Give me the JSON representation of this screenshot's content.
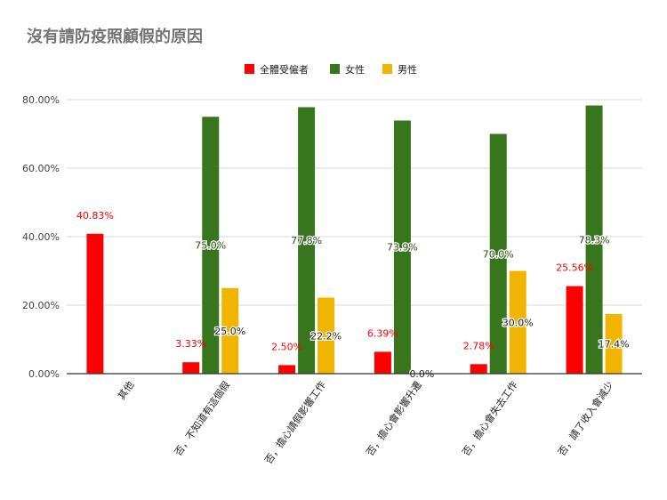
{
  "chart_data": {
    "type": "bar",
    "title": "沒有請防疫照顧假的原因",
    "categories": [
      "其他",
      "否，不知道有這個假",
      "否，擔心請假影響工作",
      "否，擔心會影響升遷",
      "否，擔心會失去工作",
      "否，請了收入會減少"
    ],
    "series": [
      {
        "name": "全體受僱者",
        "color": "#ff0000",
        "values": [
          40.83,
          3.33,
          2.5,
          6.39,
          2.78,
          25.56
        ],
        "labels": [
          "40.83%",
          "3.33%",
          "2.50%",
          "6.39%",
          "2.78%",
          "25.56%"
        ]
      },
      {
        "name": "女性",
        "color": "#38761d",
        "values": [
          null,
          75.0,
          77.8,
          73.9,
          70.0,
          78.3
        ],
        "labels": [
          "",
          "75.0%",
          "77.8%",
          "73.9%",
          "70.0%",
          "78.3%"
        ]
      },
      {
        "name": "男性",
        "color": "#f1b400",
        "values": [
          null,
          25.0,
          22.2,
          0.0,
          30.0,
          17.4
        ],
        "labels": [
          "",
          "25.0%",
          "22.2%",
          "0.0%",
          "30.0%",
          "17.4%"
        ]
      }
    ],
    "yticks": [
      "0.00%",
      "20.00%",
      "40.00%",
      "60.00%",
      "80.00%"
    ],
    "ylim": [
      0,
      80
    ],
    "grid": true,
    "legend_position": "top"
  }
}
